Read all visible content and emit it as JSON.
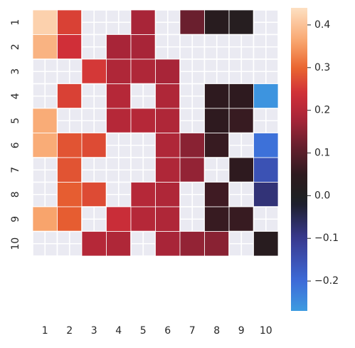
{
  "chart_data": {
    "type": "heatmap",
    "title": "",
    "xlabel": "",
    "ylabel": "",
    "x_categories": [
      "1",
      "2",
      "3",
      "4",
      "5",
      "6",
      "7",
      "8",
      "9",
      "10"
    ],
    "y_categories": [
      "1",
      "2",
      "3",
      "4",
      "5",
      "6",
      "7",
      "8",
      "9",
      "10"
    ],
    "values": [
      [
        0.42,
        0.26,
        null,
        null,
        0.18,
        null,
        0.12,
        0.03,
        0.02,
        null
      ],
      [
        0.38,
        0.24,
        null,
        0.18,
        0.18,
        null,
        null,
        null,
        null,
        null
      ],
      [
        null,
        null,
        0.25,
        0.19,
        0.19,
        0.18,
        null,
        null,
        null,
        null
      ],
      [
        null,
        0.26,
        null,
        0.2,
        null,
        0.19,
        null,
        0.05,
        0.05,
        -0.26
      ],
      [
        0.37,
        null,
        null,
        0.2,
        0.2,
        0.19,
        null,
        0.05,
        0.06,
        null
      ],
      [
        0.37,
        0.28,
        0.27,
        null,
        null,
        0.19,
        0.15,
        0.06,
        null,
        -0.21
      ],
      [
        null,
        0.28,
        null,
        null,
        null,
        0.19,
        0.16,
        null,
        0.05,
        -0.15
      ],
      [
        null,
        0.29,
        0.27,
        null,
        0.2,
        0.19,
        null,
        0.07,
        null,
        -0.08
      ],
      [
        0.36,
        0.29,
        null,
        0.23,
        0.2,
        0.19,
        null,
        0.06,
        0.06,
        null
      ],
      [
        null,
        null,
        0.2,
        0.19,
        null,
        0.18,
        0.16,
        0.15,
        null,
        0.03
      ]
    ],
    "masked_color": "#eaeaf2",
    "grid_color": "#ffffff",
    "colormap": "icefire",
    "colorbar": {
      "vmin": -0.27,
      "vmax": 0.44,
      "ticks": [
        0.4,
        0.3,
        0.2,
        0.1,
        0.0,
        -0.1,
        -0.2
      ],
      "tick_labels": [
        "0.4",
        "0.3",
        "0.2",
        "0.1",
        "0.0",
        "−0.1",
        "−0.2"
      ],
      "placement": "right"
    },
    "color_stops": [
      {
        "v": -0.27,
        "color": "#3d9be0"
      },
      {
        "v": -0.2,
        "color": "#3d6ad8"
      },
      {
        "v": -0.1,
        "color": "#39398f"
      },
      {
        "v": -0.02,
        "color": "#1d1f2e"
      },
      {
        "v": 0.0,
        "color": "#202020"
      },
      {
        "v": 0.05,
        "color": "#2e1a1f"
      },
      {
        "v": 0.12,
        "color": "#6a1f2e"
      },
      {
        "v": 0.18,
        "color": "#a82538"
      },
      {
        "v": 0.24,
        "color": "#d02f38"
      },
      {
        "v": 0.3,
        "color": "#ea6630"
      },
      {
        "v": 0.36,
        "color": "#f8a46c"
      },
      {
        "v": 0.44,
        "color": "#fde0c2"
      }
    ]
  }
}
